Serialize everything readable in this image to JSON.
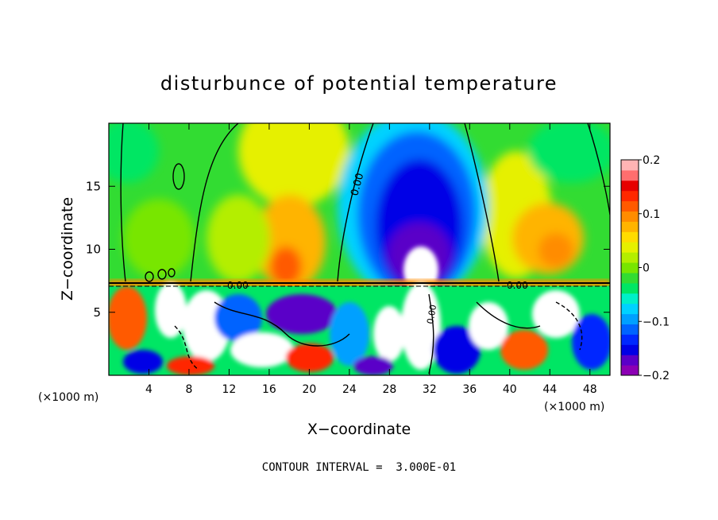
{
  "chart_data": {
    "type": "heatmap",
    "title": "disturbunce of potential temperature",
    "xlabel": "X−coordinate",
    "ylabel": "Z−coordinate",
    "x_unit_label": "(×1000 m)",
    "z_unit_label": "(×1000 m)",
    "xlim": [
      0,
      50
    ],
    "zlim": [
      0,
      20
    ],
    "x_ticks": [
      4,
      8,
      12,
      16,
      20,
      24,
      28,
      32,
      36,
      40,
      44,
      48
    ],
    "x_tick_labels": [
      "4",
      "8",
      "12",
      "16",
      "20",
      "24",
      "28",
      "32",
      "36",
      "40",
      "44",
      "48"
    ],
    "z_ticks": [
      5,
      10,
      15
    ],
    "z_tick_labels": [
      "5",
      "10",
      "15"
    ],
    "colorbar": {
      "range": [
        -0.2,
        0.2
      ],
      "tick_values": [
        0.2,
        0.1,
        0,
        -0.1,
        -0.2
      ],
      "tick_labels": [
        "0.2",
        "0.1",
        "0",
        "−0.1",
        "−0.2"
      ],
      "colors": [
        "#8c00b4",
        "#5a00c8",
        "#0000e6",
        "#0028ff",
        "#0064ff",
        "#00a0ff",
        "#00d2ff",
        "#00f0c8",
        "#00e664",
        "#32dc32",
        "#78e600",
        "#b4ee00",
        "#e6f000",
        "#ffdc00",
        "#ffb400",
        "#ff8c00",
        "#ff5a00",
        "#ff2800",
        "#e60000",
        "#ff6e6e",
        "#ffb4b4"
      ]
    },
    "contour_labels": [
      "0.00",
      "0.00",
      "0.00",
      "0.00"
    ],
    "annotation": "CONTOUR INTERVAL =  3.000E-01"
  }
}
